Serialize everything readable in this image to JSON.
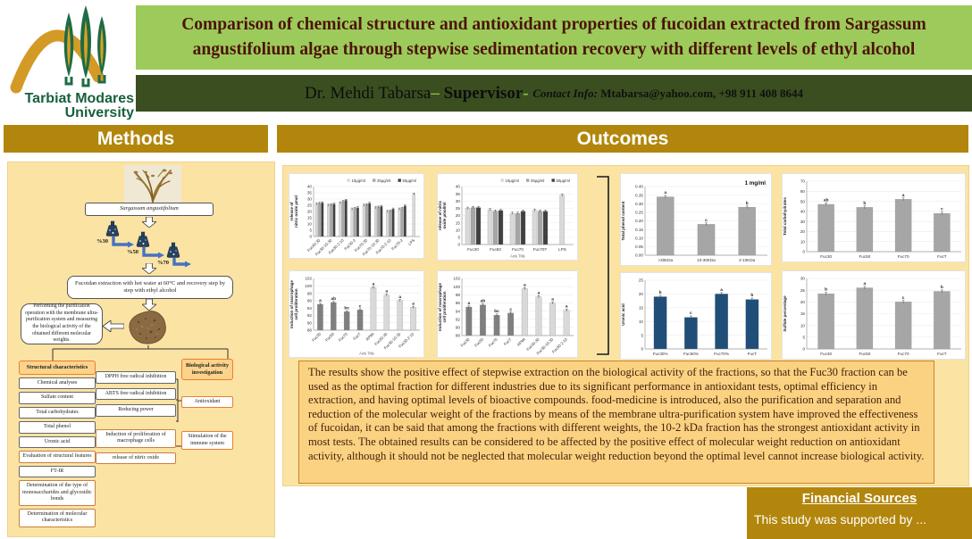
{
  "logo": {
    "line1": "Tarbiat Modares",
    "line2": "University"
  },
  "title": "Comparison of chemical structure and antioxidant properties of fucoidan extracted from Sargassum angustifolium algae through stepwise sedimentation recovery with different levels of ethyl alcohol",
  "supervisor_bar": {
    "name": "Dr. Mehdi Tabarsa",
    "dash": "– ",
    "role": "Supervisor",
    "dash2": "- ",
    "contact_label": "Contact Info: ",
    "contact_value": "Mtabarsa@yahoo.com, +98 911 408 8644"
  },
  "sections": {
    "methods": "Methods",
    "outcomes": "Outcomes"
  },
  "methods_flow": {
    "source": "Sargassum angustifolium",
    "flask_labels": [
      "%30",
      "%50",
      "%70"
    ],
    "extraction": "Fucoidan extraction with hot water at 60°C and recovery step by step with ethyl alcohol",
    "purification": "Performing the purification operation with the membrane ultra-purification system and measuring the biological activity of the obtained different molecular weights.",
    "structural_header": "Structural characteristics",
    "structural_items": [
      "Chemical analyses",
      "Sulfate content",
      "Total carbohydrates",
      "Total phenol",
      "Uronic acid",
      "Evaluation of structural features",
      "FT-IR",
      "Determination of the type of monosaccharides and glycosidic bonds",
      "Determination of molecular characteristics"
    ],
    "assay_items": [
      "DPPH free radical inhibition",
      "ABTS free radical inhibition",
      "Reducing power",
      "Induction of proliferation of macrophage cells",
      "release of nitric oxide"
    ],
    "bio_header": "Biological activity investigation",
    "bio_items": [
      "Antioxidant",
      "Stimulation of the immune system"
    ]
  },
  "chart_data": [
    {
      "id": "no-release-fractions",
      "type": "bar",
      "ylabel": "release of nitric oxide µmol",
      "ylim": [
        0,
        40
      ],
      "ystep": 5,
      "rotate_x": true,
      "categories": [
        "Fuc30-30",
        "Fuc30-10-30",
        "Fuc30-2-10",
        "Fuc30-2",
        "Fuc70-30",
        "Fuc70-10-30",
        "Fuc70-2-10",
        "Fuc70-2",
        "LPS"
      ],
      "series": [
        {
          "name": "10µg/ml",
          "color": "#d9d9d9",
          "values": [
            26,
            25,
            27,
            22,
            25,
            23,
            20,
            22,
            34
          ]
        },
        {
          "name": "25µg/ml",
          "color": "#a6a6a6",
          "values": [
            26.5,
            25.5,
            28,
            22.5,
            25.5,
            23.5,
            20.5,
            22.5,
            null
          ]
        },
        {
          "name": "50µg/ml",
          "color": "#404040",
          "values": [
            27,
            26,
            29,
            23,
            26.5,
            24,
            22,
            24.5,
            null
          ]
        }
      ]
    },
    {
      "id": "no-release-main",
      "type": "bar",
      "ylabel": "release of nitric oxide µmol/ml",
      "xlabel": "Axis Title",
      "ylim": [
        0,
        40
      ],
      "ystep": 5,
      "categories": [
        "Fuc30",
        "Fuc50",
        "Fuc70",
        "Fuc70T",
        "LPS"
      ],
      "series": [
        {
          "name": "10µg/ml",
          "color": "#d9d9d9",
          "values": [
            25,
            24,
            21.5,
            23.5,
            34
          ]
        },
        {
          "name": "25µg/ml",
          "color": "#a6a6a6",
          "values": [
            25.5,
            23,
            21.5,
            23,
            null
          ]
        },
        {
          "name": "50µg/ml",
          "color": "#404040",
          "values": [
            25.5,
            23.5,
            23,
            23,
            null
          ]
        }
      ]
    },
    {
      "id": "total-phenol",
      "type": "bar",
      "annotation": "1 mg/ml",
      "ylabel": "Total phenol content",
      "ylim": [
        0,
        0.4
      ],
      "ystep": 0.05,
      "ydecimals": 2,
      "categories": [
        ">30KDa",
        "10-30KDa",
        "2-10KDa"
      ],
      "values": [
        0.34,
        0.18,
        0.28
      ],
      "letters": [
        "a",
        "c",
        "b"
      ],
      "color": "#a6a6a6"
    },
    {
      "id": "total-carbohydrates",
      "type": "bar",
      "ylabel": "Total carbohydrates",
      "ylim": [
        0,
        70
      ],
      "ystep": 10,
      "categories": [
        "Fuc30",
        "Fuc50",
        "Fuc70",
        "FucT"
      ],
      "values": [
        47,
        44,
        52,
        38
      ],
      "letters": [
        "ab",
        "b",
        "a",
        "c"
      ],
      "color": "#a6a6a6"
    },
    {
      "id": "macrophage-proliferation-1",
      "type": "bar",
      "ylabel": "Induction of macrophage cell proliferation",
      "xlabel": "Axis Title",
      "ylim": [
        88,
        102
      ],
      "ystep": 2,
      "rotate_x": true,
      "categories": [
        "Fuc30",
        "Fuc50",
        "Fuc70",
        "FucT",
        "RPMI",
        "Fuc30-30",
        "Fuc30-10-30",
        "Fuc30-2-10"
      ],
      "values": [
        95,
        95.5,
        93,
        93.5,
        99.5,
        97.5,
        96,
        94.2
      ],
      "letters": [
        "a",
        "ab",
        "bc",
        "c",
        "a",
        "a",
        "a",
        "a"
      ],
      "bar_colors": [
        "#7f7f7f",
        "#7f7f7f",
        "#7f7f7f",
        "#7f7f7f",
        "#d9d9d9",
        "#d9d9d9",
        "#d9d9d9",
        "#d9d9d9"
      ]
    },
    {
      "id": "macrophage-proliferation-2",
      "type": "bar",
      "ylabel": "Induction of macrophage cell proliferation",
      "ylim": [
        88,
        102
      ],
      "ystep": 2,
      "rotate_x": true,
      "categories": [
        "Fuc30",
        "Fuc50",
        "Fuc70",
        "FucT",
        "RPMI",
        "Fuc30-30",
        "Fuc30-10-30",
        "Fuc30-2-10"
      ],
      "values": [
        95,
        95.5,
        93,
        93.5,
        99.5,
        97.5,
        96,
        94.2
      ],
      "letters": [
        "a",
        "ab",
        "bc",
        "c",
        "a",
        "a",
        "a",
        "a"
      ],
      "bar_colors": [
        "#7f7f7f",
        "#7f7f7f",
        "#7f7f7f",
        "#7f7f7f",
        "#d9d9d9",
        "#d9d9d9",
        "#d9d9d9",
        "#d9d9d9"
      ]
    },
    {
      "id": "uronic-acid",
      "type": "bar",
      "ylabel": "Uronic acid",
      "ylim": [
        0,
        25
      ],
      "ystep": 5,
      "categories": [
        "Fuc30%",
        "Fuc50%",
        "Fuc70%",
        "FucT"
      ],
      "values": [
        19,
        11.5,
        20,
        18
      ],
      "letters": [
        "b",
        "c",
        "a",
        "b"
      ],
      "color": "#1F4E79"
    },
    {
      "id": "sulfate-percentage",
      "type": "bar",
      "ylabel": "Sulfate percentage",
      "ylim": [
        0,
        30
      ],
      "ystep": 5,
      "categories": [
        "Fuc30",
        "Fuc50",
        "Fuc70",
        "FucT"
      ],
      "values": [
        23.5,
        26,
        20,
        24.5
      ],
      "letters": [
        "b",
        "a",
        "c",
        "b"
      ],
      "color": "#a6a6a6"
    }
  ],
  "results_text": "The results show the positive effect of stepwise extraction on the biological activity of the fractions, so that the Fuc30 fraction can be used as the optimal fraction for different industries due to its significant performance in antioxidant tests, optimal efficiency in extraction, and having optimal levels of bioactive compounds. food-medicine is introduced, also the purification and separation and reduction of the molecular weight of the fractions by means of the membrane ultra-purification system have improved the effectiveness of fucoidan, it can be said that among the fractions with different weights, the 10-2 kDa fraction has the strongest antioxidant activity in most tests. The obtained results can be considered to be affected by the positive effect of molecular weight reduction on antioxidant activity, although it should not be neglected that molecular weight reduction beyond the optimal level cannot increase biological activity.",
  "financial": {
    "header": "Financial Sources",
    "body": "This study was supported by ..."
  },
  "colors": {
    "header_gold": "#B2860D",
    "title_green": "#9CCB5C",
    "supervisor_bar_green": "#3A4E1F",
    "panel_yellow": "#FBE3A4",
    "results_bg": "#FBD282",
    "bar_blue": "#1F4E79",
    "bar_gray": "#a6a6a6"
  }
}
